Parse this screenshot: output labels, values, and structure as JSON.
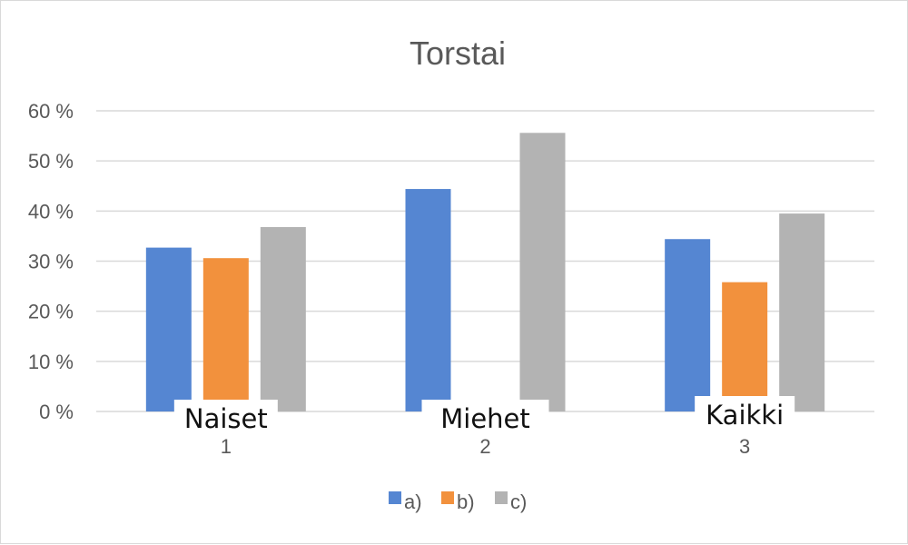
{
  "chart_data": {
    "type": "bar",
    "title": "Torstai",
    "categories": [
      "1",
      "2",
      "3"
    ],
    "category_labels": [
      "Naiset",
      "Miehet",
      "Kaikki"
    ],
    "y_ticks": [
      "0 %",
      "10 %",
      "20 %",
      "30 %",
      "40 %",
      "50 %",
      "60 %"
    ],
    "ylim": [
      0,
      60
    ],
    "grid": true,
    "legend_position": "bottom",
    "series": [
      {
        "name": "a)",
        "color": "#5586d2",
        "values": [
          32.7,
          44.4,
          34.4
        ]
      },
      {
        "name": "b)",
        "color": "#f2913d",
        "values": [
          30.6,
          0,
          25.8
        ]
      },
      {
        "name": "c)",
        "color": "#b3b3b3",
        "values": [
          36.8,
          55.6,
          39.5
        ]
      }
    ]
  }
}
